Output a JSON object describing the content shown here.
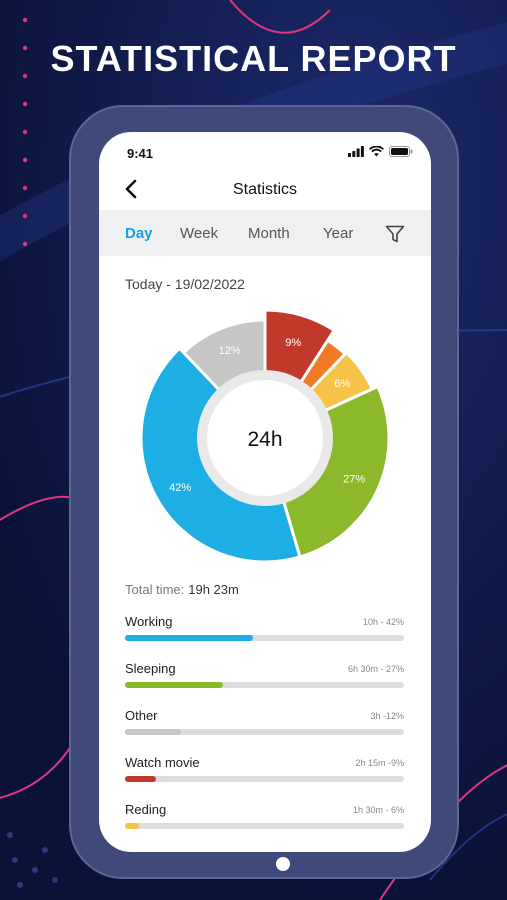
{
  "headline": "STATISTICAL REPORT",
  "status_bar": {
    "time": "9:41"
  },
  "nav": {
    "title": "Statistics",
    "back_icon": "chevron-left-icon"
  },
  "tabs": [
    {
      "label": "Day",
      "active": true
    },
    {
      "label": "Week",
      "active": false
    },
    {
      "label": "Month",
      "active": false
    },
    {
      "label": "Year",
      "active": false
    }
  ],
  "filter_icon": "filter-icon",
  "date_label": "Today - 19/02/2022",
  "chart_data": {
    "type": "pie",
    "center_label": "24h",
    "slices": [
      {
        "label": "12%",
        "value": 12,
        "color": "#c6c6c6"
      },
      {
        "label": "9%",
        "value": 9,
        "color": "#c0392b"
      },
      {
        "label": "",
        "value": 3,
        "color": "#f07a28"
      },
      {
        "label": "6%",
        "value": 6,
        "color": "#f7c248"
      },
      {
        "label": "27%",
        "value": 27,
        "color": "#8cb82b"
      },
      {
        "label": "42%",
        "value": 42,
        "color": "#1daee3"
      }
    ]
  },
  "total": {
    "label": "Total time:",
    "value": "19h 23m"
  },
  "activities": [
    {
      "name": "Working",
      "meta": "10h  - 42%",
      "fraction": 0.46,
      "color": "#1daee3"
    },
    {
      "name": "Sleeping",
      "meta": "6h 30m - 27%",
      "fraction": 0.35,
      "color": "#8cb82b"
    },
    {
      "name": "Other",
      "meta": "3h -12%",
      "fraction": 0.2,
      "color": "#c6c6c6"
    },
    {
      "name": "Watch movie",
      "meta": "2h 15m -9%",
      "fraction": 0.11,
      "color": "#c0392b"
    },
    {
      "name": "Reding",
      "meta": "1h 30m - 6%",
      "fraction": 0.05,
      "color": "#f7c248"
    }
  ]
}
